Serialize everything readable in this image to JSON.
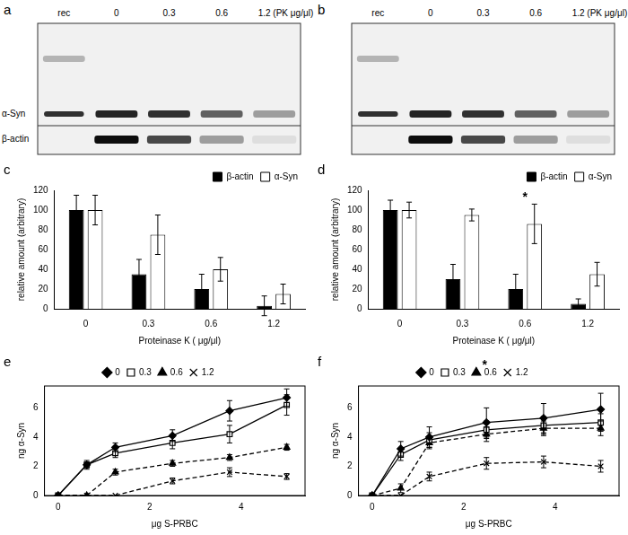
{
  "blots": [
    {
      "panel": "a",
      "lanes": [
        "rec",
        "0",
        "0.3",
        "0.6",
        "1.2 (PK μg/μl)"
      ],
      "rows": [
        "α-Syn",
        "β-actin"
      ]
    },
    {
      "panel": "b",
      "lanes": [
        "rec",
        "0",
        "0.3",
        "0.6",
        "1.2 (PK μg/μl)"
      ]
    }
  ],
  "chart_data": [
    {
      "panel": "c",
      "type": "bar",
      "categories": [
        "0",
        "0.3",
        "0.6",
        "1.2"
      ],
      "xlabel": "Proteinase K ( μg/μl)",
      "ylabel": "relative amount (arbitrary)",
      "ylim": [
        0,
        120
      ],
      "yticks": [
        0,
        20,
        40,
        60,
        80,
        100,
        120
      ],
      "grid": false,
      "legend": "upper right",
      "series": [
        {
          "name": "β-actin",
          "color": "#000000",
          "values": [
            100,
            35,
            20,
            3
          ],
          "errors": [
            15,
            15,
            15,
            10
          ]
        },
        {
          "name": "α-Syn",
          "color": "#ffffff",
          "values": [
            100,
            75,
            40,
            15
          ],
          "errors": [
            15,
            20,
            12,
            10
          ]
        }
      ]
    },
    {
      "panel": "d",
      "type": "bar",
      "categories": [
        "0",
        "0.3",
        "0.6",
        "1.2"
      ],
      "xlabel": "Proteinase K ( μg/μl)",
      "ylabel": "relative amount (arbitrary)",
      "ylim": [
        0,
        120
      ],
      "yticks": [
        0,
        20,
        40,
        60,
        80,
        100,
        120
      ],
      "grid": false,
      "legend": "upper right",
      "series": [
        {
          "name": "β-actin",
          "color": "#000000",
          "values": [
            100,
            30,
            20,
            5
          ],
          "errors": [
            10,
            15,
            15,
            5
          ]
        },
        {
          "name": "α-Syn",
          "color": "#ffffff",
          "values": [
            100,
            95,
            86,
            35
          ],
          "errors": [
            8,
            6,
            20,
            12
          ]
        }
      ],
      "annotations": [
        {
          "text": "*",
          "x": "0.6",
          "y": 106
        }
      ]
    },
    {
      "panel": "e",
      "type": "line",
      "x": [
        0,
        0.625,
        1.25,
        2.5,
        3.75,
        5
      ],
      "xlabel": "μg S-PRBC",
      "ylabel": "ng α-Syn",
      "xlim": [
        -0.3,
        5.4
      ],
      "xticks": [
        0,
        2,
        4
      ],
      "ylim": [
        0,
        7.5
      ],
      "yticks": [
        0,
        2,
        4,
        6
      ],
      "grid": false,
      "legend": "top",
      "series": [
        {
          "name": "0",
          "color": "#000000",
          "marker": "diamond",
          "line_style": "solid",
          "values": [
            0,
            2.1,
            3.3,
            4.1,
            5.8,
            6.7
          ],
          "errors": [
            0,
            0.3,
            0.3,
            0.4,
            0.7,
            0.6
          ]
        },
        {
          "name": "0.3",
          "color": "#000000",
          "marker": "square-open",
          "line_style": "solid",
          "values": [
            0,
            2.1,
            2.9,
            3.6,
            4.2,
            6.2
          ],
          "errors": [
            0,
            0.2,
            0.3,
            0.4,
            0.6,
            0.7
          ]
        },
        {
          "name": "0.6",
          "color": "#000000",
          "marker": "triangle",
          "line_style": "dashed",
          "values": [
            0,
            0,
            1.6,
            2.2,
            2.6,
            3.3
          ],
          "errors": [
            0,
            0,
            0.2,
            0.2,
            0.2,
            0.2
          ]
        },
        {
          "name": "1.2",
          "color": "#000000",
          "marker": "x",
          "line_style": "dashed",
          "values": [
            0,
            0,
            0,
            1.0,
            1.6,
            1.3
          ],
          "errors": [
            0,
            0,
            0,
            0.2,
            0.3,
            0.2
          ]
        }
      ]
    },
    {
      "panel": "f",
      "type": "line",
      "x": [
        0,
        0.625,
        1.25,
        2.5,
        3.75,
        5
      ],
      "xlabel": "μg S-PRBC",
      "ylabel": "ng α-Syn",
      "xlim": [
        -0.3,
        5.4
      ],
      "xticks": [
        0,
        2,
        4
      ],
      "ylim": [
        0,
        7.5
      ],
      "yticks": [
        0,
        2,
        4,
        6
      ],
      "grid": false,
      "legend": "top",
      "series": [
        {
          "name": "0",
          "color": "#000000",
          "marker": "diamond",
          "line_style": "solid",
          "values": [
            0,
            3.2,
            4.0,
            5.0,
            5.3,
            5.9
          ],
          "errors": [
            0,
            0.5,
            0.7,
            1.0,
            1.0,
            1.1
          ]
        },
        {
          "name": "0.3",
          "color": "#000000",
          "marker": "square-open",
          "line_style": "solid",
          "values": [
            0,
            2.8,
            3.8,
            4.5,
            4.8,
            5.0
          ],
          "errors": [
            0,
            0.4,
            0.5,
            0.6,
            0.6,
            0.6
          ]
        },
        {
          "name": "0.6",
          "color": "#000000",
          "marker": "triangle",
          "line_style": "dashed",
          "values": [
            0,
            0.5,
            3.6,
            4.2,
            4.6,
            4.6
          ],
          "errors": [
            0,
            0.3,
            0.4,
            0.5,
            0.5,
            0.5
          ]
        },
        {
          "name": "1.2",
          "color": "#000000",
          "marker": "x",
          "line_style": "dashed",
          "values": [
            0,
            0,
            1.3,
            2.2,
            2.3,
            2.0
          ],
          "errors": [
            0,
            0,
            0.3,
            0.4,
            0.4,
            0.4
          ]
        }
      ],
      "annotations": [
        {
          "text": "*",
          "series": "0.6"
        }
      ]
    }
  ]
}
